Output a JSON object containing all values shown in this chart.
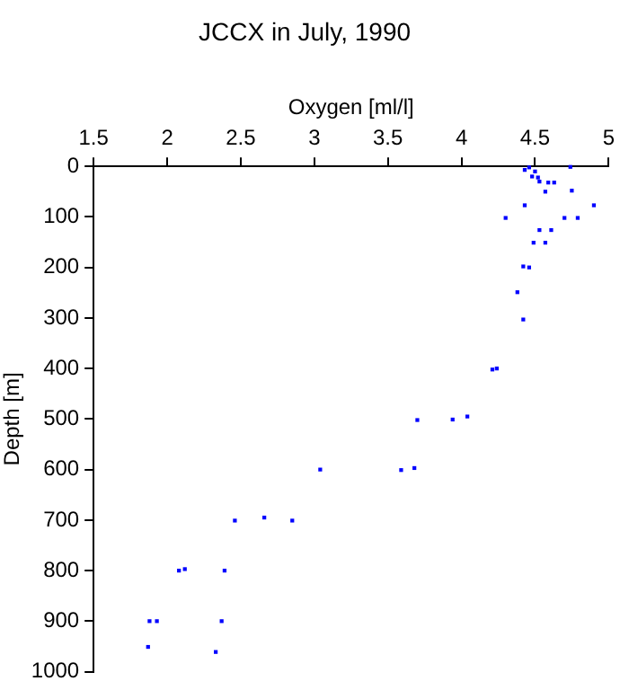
{
  "chart_data": {
    "type": "scatter",
    "title": "JCCX in July, 1990",
    "xlabel": "Oxygen [ml/l]",
    "ylabel": "Depth [m]",
    "x": [
      4.46,
      4.43,
      4.5,
      4.48,
      4.52,
      4.53,
      4.59,
      4.63,
      4.74,
      4.75,
      4.57,
      4.43,
      4.9,
      4.3,
      4.7,
      4.79,
      4.53,
      4.61,
      4.49,
      4.57,
      4.42,
      4.46,
      4.38,
      4.42,
      4.24,
      4.21,
      3.7,
      3.94,
      4.04,
      3.59,
      3.68,
      3.04,
      2.46,
      2.66,
      2.85,
      2.08,
      2.12,
      2.39,
      1.88,
      1.93,
      2.37,
      1.87,
      2.33
    ],
    "values": [
      2,
      7,
      10,
      20,
      22,
      30,
      32,
      32,
      1,
      48,
      50,
      77,
      77,
      102,
      102,
      102,
      126,
      126,
      151,
      151,
      198,
      200,
      249,
      303,
      400,
      402,
      502,
      501,
      495,
      601,
      597,
      600,
      701,
      695,
      701,
      800,
      797,
      800,
      900,
      900,
      900,
      951,
      961
    ],
    "color": "#0000ff",
    "marker": "square",
    "xlim": [
      1.5,
      5
    ],
    "xticks": [
      1.5,
      2,
      2.5,
      3,
      3.5,
      4,
      4.5,
      5
    ],
    "ylim": [
      1000,
      0
    ],
    "yticks": [
      0,
      100,
      200,
      300,
      400,
      500,
      600,
      700,
      800,
      900,
      1000
    ]
  }
}
